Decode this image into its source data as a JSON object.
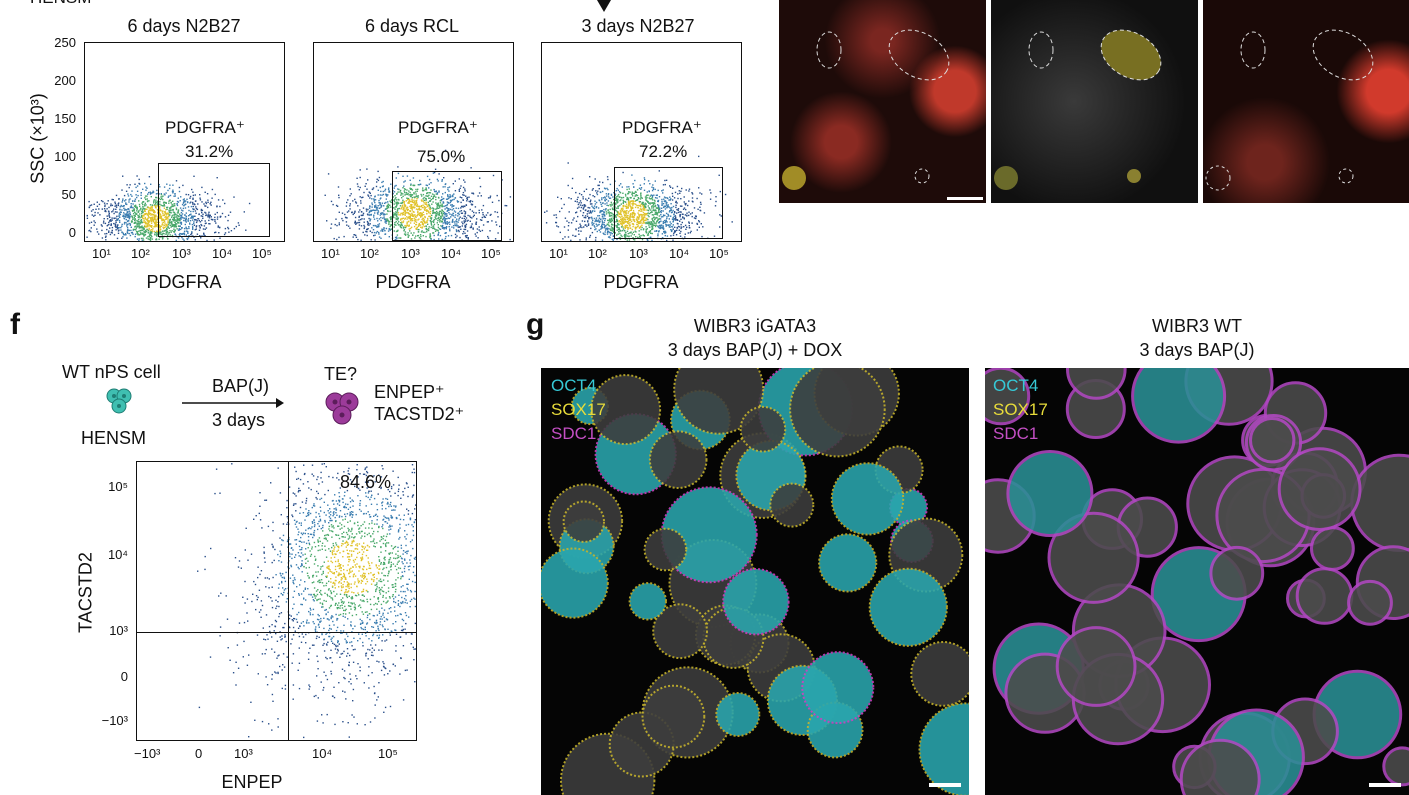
{
  "top": {
    "cut_label": "HENSM",
    "plots": [
      {
        "title": "6 days N2B27",
        "gate_label": "PDGFRA⁺",
        "gate_pct": "31.2%"
      },
      {
        "title": "6 days RCL",
        "gate_label": "PDGFRA⁺",
        "gate_pct": "75.0%"
      },
      {
        "title": "3 days N2B27",
        "gate_label": "PDGFRA⁺",
        "gate_pct": "72.2%"
      }
    ],
    "ylabel": "SSC (×10³)",
    "xlabel": "PDGFRA",
    "yticks": [
      "250",
      "200",
      "150",
      "100",
      "50",
      "0"
    ],
    "xticks": [
      "10¹",
      "10²",
      "10³",
      "10⁴",
      "10⁵"
    ]
  },
  "panel_f": {
    "letter": "f",
    "start_cell": "WT nPS cell",
    "start_medium": "HENSM",
    "arrow_top": "BAP(J)",
    "arrow_bottom": "3 days",
    "end_cell": "TE?",
    "markers": [
      "ENPEP⁺",
      "TACSTD2⁺"
    ],
    "quadrant_pct": "84.6%",
    "xlabel": "ENPEP",
    "ylabel": "TACSTD2",
    "xticks": [
      "−10³",
      "0",
      "10³",
      "10⁴",
      "10⁵"
    ],
    "yticks": [
      "10⁵",
      "10⁴",
      "10³",
      "0",
      "−10³"
    ]
  },
  "panel_g": {
    "letter": "g",
    "left_title_1": "WIBR3 iGATA3",
    "left_title_2": "3 days BAP(J) + DOX",
    "right_title_1": "WIBR3 WT",
    "right_title_2": "3 days BAP(J)",
    "channels": [
      {
        "name": "OCT4",
        "color": "#36c9d6"
      },
      {
        "name": "SOX17",
        "color": "#e8dc3a"
      },
      {
        "name": "SDC1",
        "color": "#c44fc4"
      }
    ]
  },
  "colors": {
    "cyan": "#36c9d6",
    "yellow": "#e8dc3a",
    "magenta": "#c44fc4",
    "red": "#d8392b",
    "cell_teal": "#3fbfb1",
    "cell_purple": "#9c3b9a"
  }
}
